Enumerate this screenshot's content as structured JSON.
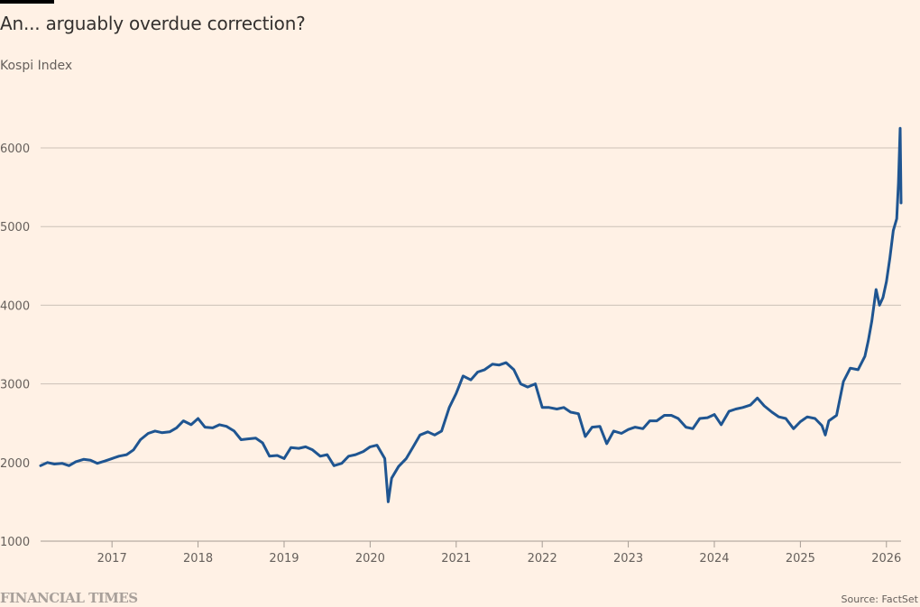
{
  "header": {
    "title": "An... arguably overdue correction?",
    "subtitle": "Kospi Index"
  },
  "footer": {
    "brand": "FINANCIAL TIMES",
    "source": "Source: FactSet"
  },
  "colors": {
    "background": "#fff1e5",
    "line": "#1f5591",
    "grid": "#ccc1b7",
    "axis": "#a69c94"
  },
  "chart_data": {
    "type": "line",
    "title": "An... arguably overdue correction?",
    "subtitle": "Kospi Index",
    "xlabel": "",
    "ylabel": "",
    "xlim": [
      2016.17,
      2026.17
    ],
    "ylim": [
      1000,
      6000
    ],
    "grid": true,
    "legend": "none",
    "y_ticks": [
      "1000",
      "2000",
      "3000",
      "4000",
      "5000",
      "6000"
    ],
    "y_tick_values": [
      1000,
      2000,
      3000,
      4000,
      5000,
      6000
    ],
    "x_ticks": [
      "2017",
      "2018",
      "2019",
      "2020",
      "2021",
      "2022",
      "2023",
      "2024",
      "2025",
      "2026"
    ],
    "x_tick_values": [
      2017,
      2018,
      2019,
      2020,
      2021,
      2022,
      2023,
      2024,
      2025,
      2026
    ],
    "series": [
      {
        "name": "Kospi Index",
        "x": [
          2016.17,
          2016.25,
          2016.33,
          2016.42,
          2016.5,
          2016.58,
          2016.67,
          2016.75,
          2016.83,
          2016.92,
          2017.0,
          2017.08,
          2017.17,
          2017.25,
          2017.33,
          2017.42,
          2017.5,
          2017.58,
          2017.67,
          2017.75,
          2017.83,
          2017.92,
          2018.0,
          2018.08,
          2018.17,
          2018.25,
          2018.33,
          2018.42,
          2018.5,
          2018.58,
          2018.67,
          2018.75,
          2018.83,
          2018.92,
          2019.0,
          2019.08,
          2019.17,
          2019.25,
          2019.33,
          2019.42,
          2019.5,
          2019.58,
          2019.67,
          2019.75,
          2019.83,
          2019.92,
          2020.0,
          2020.08,
          2020.17,
          2020.21,
          2020.25,
          2020.33,
          2020.42,
          2020.5,
          2020.58,
          2020.67,
          2020.75,
          2020.83,
          2020.92,
          2021.0,
          2021.08,
          2021.17,
          2021.25,
          2021.33,
          2021.42,
          2021.5,
          2021.58,
          2021.67,
          2021.75,
          2021.83,
          2021.92,
          2022.0,
          2022.08,
          2022.17,
          2022.25,
          2022.33,
          2022.42,
          2022.5,
          2022.58,
          2022.67,
          2022.75,
          2022.83,
          2022.92,
          2023.0,
          2023.08,
          2023.17,
          2023.25,
          2023.33,
          2023.42,
          2023.5,
          2023.58,
          2023.67,
          2023.75,
          2023.83,
          2023.92,
          2024.0,
          2024.08,
          2024.17,
          2024.25,
          2024.33,
          2024.42,
          2024.5,
          2024.58,
          2024.67,
          2024.75,
          2024.83,
          2024.92,
          2025.0,
          2025.08,
          2025.17,
          2025.25,
          2025.29,
          2025.33,
          2025.42,
          2025.5,
          2025.58,
          2025.67,
          2025.75,
          2025.79,
          2025.83,
          2025.88,
          2025.92,
          2025.96,
          2026.0,
          2026.04,
          2026.08,
          2026.12,
          2026.14,
          2026.16,
          2026.17
        ],
        "values": [
          1960,
          2000,
          1980,
          1990,
          1960,
          2010,
          2040,
          2030,
          1990,
          2020,
          2050,
          2080,
          2100,
          2160,
          2290,
          2370,
          2400,
          2380,
          2390,
          2440,
          2530,
          2480,
          2560,
          2450,
          2440,
          2480,
          2460,
          2400,
          2290,
          2300,
          2310,
          2250,
          2080,
          2090,
          2050,
          2190,
          2180,
          2200,
          2160,
          2080,
          2100,
          1960,
          1990,
          2080,
          2100,
          2140,
          2200,
          2220,
          2050,
          1500,
          1800,
          1950,
          2050,
          2200,
          2350,
          2390,
          2350,
          2400,
          2700,
          2880,
          3100,
          3050,
          3150,
          3180,
          3250,
          3240,
          3270,
          3180,
          3000,
          2960,
          3000,
          2700,
          2700,
          2680,
          2700,
          2640,
          2620,
          2330,
          2450,
          2460,
          2240,
          2400,
          2370,
          2420,
          2450,
          2430,
          2530,
          2530,
          2600,
          2600,
          2560,
          2450,
          2430,
          2560,
          2570,
          2610,
          2480,
          2650,
          2680,
          2700,
          2730,
          2820,
          2720,
          2640,
          2580,
          2560,
          2430,
          2520,
          2580,
          2560,
          2470,
          2350,
          2530,
          2600,
          3030,
          3200,
          3180,
          3350,
          3550,
          3800,
          4200,
          4000,
          4100,
          4300,
          4600,
          4950,
          5100,
          5550,
          6250,
          5300
        ]
      }
    ]
  }
}
